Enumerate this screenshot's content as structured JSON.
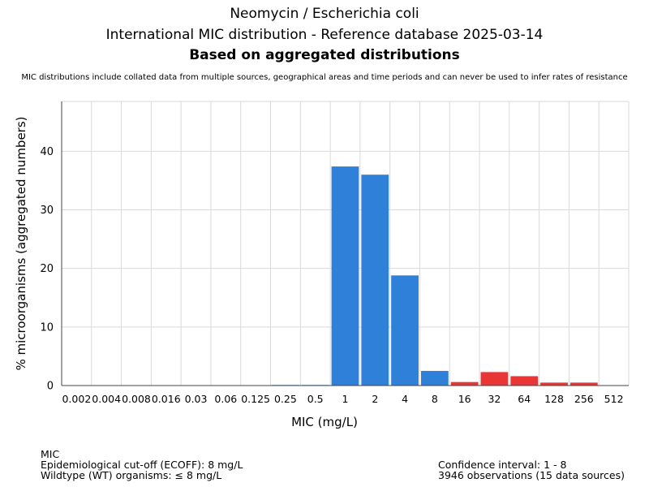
{
  "header": {
    "title": "Neomycin / Escherichia coli",
    "subtitle": "International MIC distribution - Reference database 2025-03-14",
    "subtitle_bold": "Based on aggregated distributions",
    "note": "MIC distributions include collated data from multiple sources, geographical areas and time periods and can never be used to infer rates of resistance"
  },
  "chart_data": {
    "type": "bar",
    "xlabel": "MIC (mg/L)",
    "ylabel": "% microorganisms (aggregated numbers)",
    "categories": [
      "0.002",
      "0.004",
      "0.008",
      "0.016",
      "0.03",
      "0.06",
      "0.125",
      "0.25",
      "0.5",
      "1",
      "2",
      "4",
      "8",
      "16",
      "32",
      "64",
      "128",
      "256",
      "512"
    ],
    "values": [
      0,
      0,
      0,
      0,
      0,
      0,
      0,
      0.1,
      0.1,
      37.4,
      36.0,
      18.8,
      2.5,
      0.6,
      2.3,
      1.6,
      0.5,
      0.5,
      0
    ],
    "ylim": [
      0,
      48.5
    ],
    "yticks": [
      0,
      10,
      20,
      30,
      40
    ],
    "wildtype_max_index": 12,
    "colors": {
      "wildtype": "#2f80d8",
      "non_wildtype": "#e83535",
      "grid": "#d9d9d9",
      "axis": "#444444"
    },
    "grid": true
  },
  "footer": {
    "left": [
      "MIC",
      "Epidemiological cut-off (ECOFF): 8 mg/L",
      "Wildtype (WT) organisms: ≤ 8 mg/L"
    ],
    "right": [
      "Confidence interval: 1 - 8",
      "3946 observations (15 data sources)"
    ]
  }
}
